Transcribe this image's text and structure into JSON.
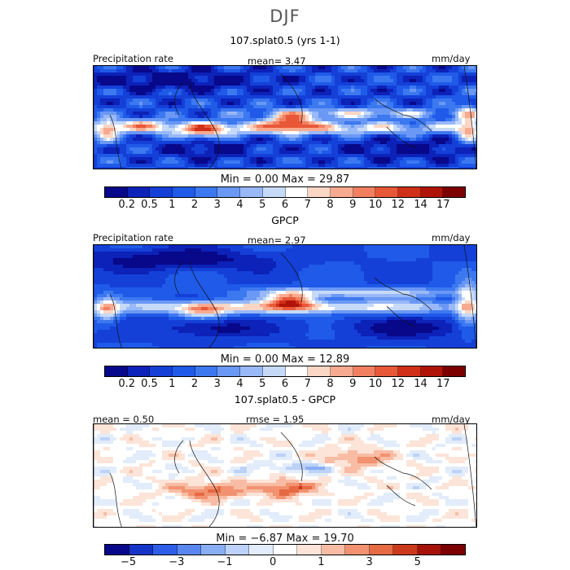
{
  "season": "DJF",
  "panels": [
    {
      "title": "107.splat0.5 (yrs 1-1)",
      "left_label": "Precipitation rate",
      "center_label": "mean=   3.47",
      "right_label": "mm/day",
      "minmax": "Min =    0.00  Max =  29.87",
      "field": "precip-model"
    },
    {
      "title": "GPCP",
      "left_label": "Precipitation rate",
      "center_label": "mean=   2.97",
      "right_label": "mm/day",
      "minmax": "Min =    0.00  Max =  12.89",
      "field": "precip-obs"
    },
    {
      "title": "107.splat0.5 - GPCP",
      "left_label": "mean =  0.50",
      "center_label": "rmse =   1.95",
      "right_label": "mm/day",
      "minmax": "Min =  −6.87  Max =  19.70",
      "field": "difference"
    }
  ],
  "colorbar_precip": {
    "colors": [
      "#08088a",
      "#0c22b8",
      "#1440d8",
      "#1f5ae8",
      "#3c78f0",
      "#6a98f4",
      "#98b8f8",
      "#c6daf8",
      "#ffffff",
      "#fcd6c4",
      "#f8aa90",
      "#f28060",
      "#e85838",
      "#d03018",
      "#b01408",
      "#7c0000"
    ],
    "ticks": [
      "0.2",
      "0.5",
      "1",
      "2",
      "3",
      "4",
      "5",
      "6",
      "7",
      "8",
      "9",
      "10",
      "12",
      "14",
      "17"
    ]
  },
  "colorbar_diff": {
    "colors": [
      "#08088a",
      "#1434c8",
      "#2e5ee8",
      "#5a86f0",
      "#8aaef4",
      "#bcd2f8",
      "#e2ecfa",
      "#ffffff",
      "#fce4d8",
      "#f8bca4",
      "#f29270",
      "#e66a44",
      "#cc3a1c",
      "#a41208",
      "#7c0000"
    ],
    "ticks": [
      {
        "label": "−5",
        "pos": 1
      },
      {
        "label": "−3",
        "pos": 3
      },
      {
        "label": "−1",
        "pos": 5
      },
      {
        "label": "0",
        "pos": 7
      },
      {
        "label": "1",
        "pos": 9
      },
      {
        "label": "3",
        "pos": 11
      },
      {
        "label": "5",
        "pos": 13
      }
    ]
  }
}
